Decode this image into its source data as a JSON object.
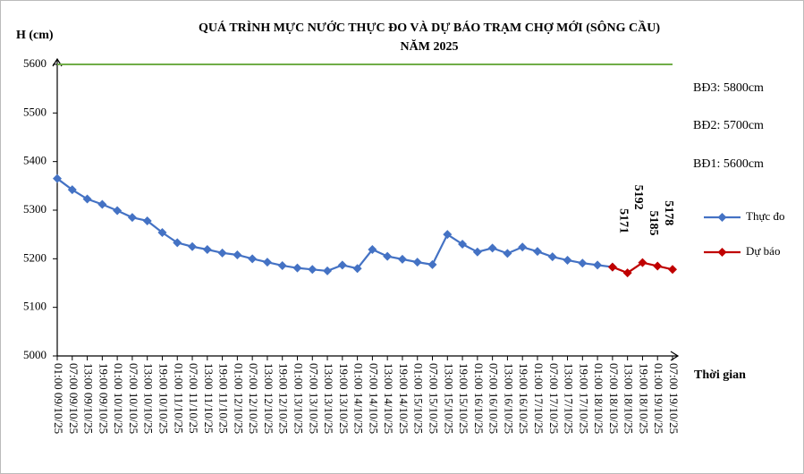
{
  "chart_data": {
    "type": "line",
    "title": "QUÁ TRÌNH MỰC NƯỚC THỰC ĐO VÀ DỰ BÁO TRẠM CHỢ MỚI (SÔNG CẦU)",
    "subtitle": "NĂM 2025",
    "y_label": "H (cm)",
    "x_label": "Thời gian",
    "annotations": [
      "BĐ3: 5800cm",
      "BĐ2: 5700cm",
      "BĐ1: 5600cm"
    ],
    "threshold_line": {
      "value": 5600,
      "color": "#70ad47"
    },
    "categories": [
      "01:00 09/10/25",
      "07:00 09/10/25",
      "13:00 09/10/25",
      "19:00 09/10/25",
      "01:00 10/10/25",
      "07:00 10/10/25",
      "13:00 10/10/25",
      "19:00 10/10/25",
      "01:00 11/10/25",
      "07:00 11/10/25",
      "13:00 11/10/25",
      "19:00 11/10/25",
      "01:00 12/10/25",
      "07:00 12/10/25",
      "13:00 12/10/25",
      "19:00 12/10/25",
      "01:00 13/10/25",
      "07:00 13/10/25",
      "13:00 13/10/25",
      "19:00 13/10/25",
      "01:00 14/10/25",
      "07:00 14/10/25",
      "13:00 14/10/25",
      "19:00 14/10/25",
      "01:00 15/10/25",
      "07:00 15/10/25",
      "13:00 15/10/25",
      "19:00 15/10/25",
      "01:00 16/10/25",
      "07:00 16/10/25",
      "13:00 16/10/25",
      "19:00 16/10/25",
      "01:00 17/10/25",
      "07:00 17/10/25",
      "13:00 17/10/25",
      "19:00 17/10/25",
      "01:00 18/10/25",
      "07:00 18/10/25",
      "13:00 18/10/25",
      "19:00 18/10/25",
      "01:00 19/10/25",
      "07:00 19/10/25"
    ],
    "series": [
      {
        "name": "Thực đo",
        "color": "#4472c4",
        "values": [
          5365,
          5342,
          5323,
          5312,
          5299,
          5285,
          5278,
          5254,
          5233,
          5225,
          5219,
          5212,
          5208,
          5200,
          5193,
          5186,
          5181,
          5178,
          5175,
          5187,
          5180,
          5219,
          5205,
          5199,
          5193,
          5188,
          5250,
          5230,
          5214,
          5222,
          5211,
          5224,
          5215,
          5204,
          5197,
          5191,
          5187,
          5183,
          null,
          null,
          null,
          null
        ]
      },
      {
        "name": "Dự báo",
        "color": "#c00000",
        "values": [
          null,
          null,
          null,
          null,
          null,
          null,
          null,
          null,
          null,
          null,
          null,
          null,
          null,
          null,
          null,
          null,
          null,
          null,
          null,
          null,
          null,
          null,
          null,
          null,
          null,
          null,
          null,
          null,
          null,
          null,
          null,
          null,
          null,
          null,
          null,
          null,
          null,
          5183,
          5171,
          5192,
          5185,
          5178
        ]
      }
    ],
    "ylim": [
      5000,
      5600
    ],
    "yticks": [
      5000,
      5100,
      5200,
      5300,
      5400,
      5500,
      5600
    ]
  }
}
